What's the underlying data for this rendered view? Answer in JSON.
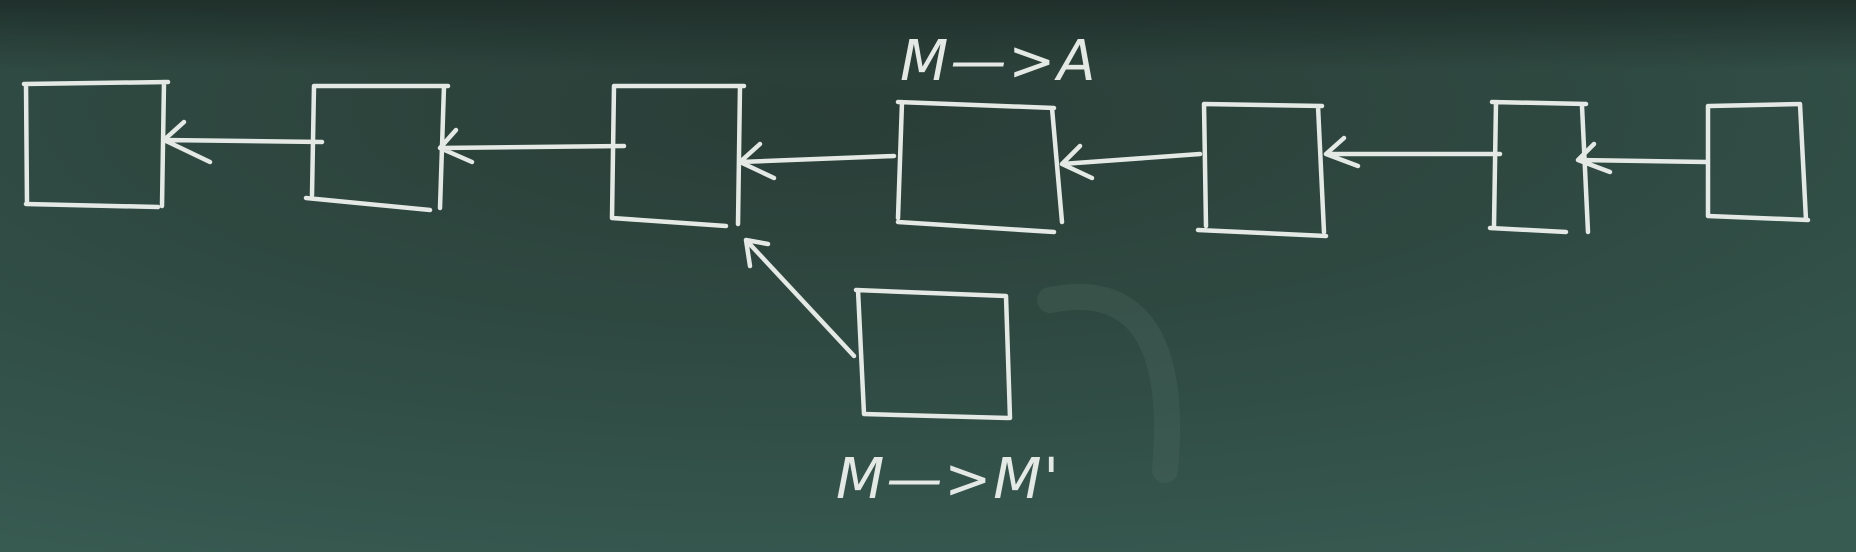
{
  "diagram": {
    "background_color": "#2f4a42",
    "chalk_color": "#e4e9e5",
    "description_blocks_total": 8,
    "labels": {
      "top_transfer": "M—>A",
      "bottom_transfer": "M—>M'"
    }
  }
}
